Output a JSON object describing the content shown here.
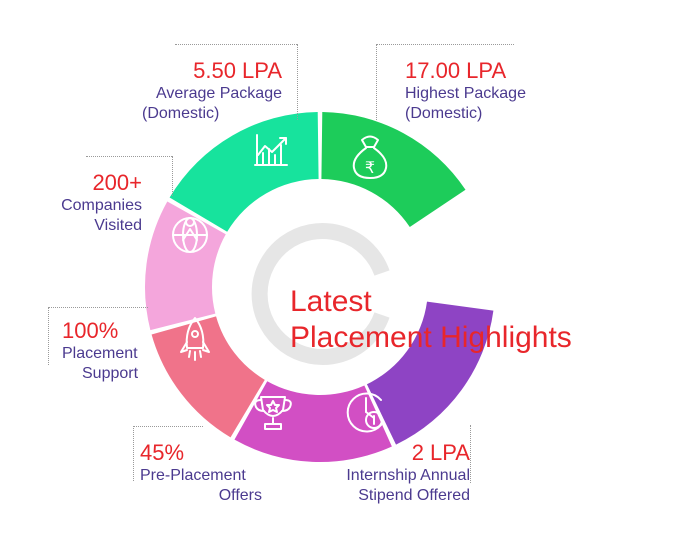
{
  "title": {
    "line1": "Latest",
    "line2": "Placement Highlights"
  },
  "segments": [
    {
      "value": "17.00 LPA",
      "label1": "Highest Package",
      "label2": "(Domestic)",
      "icon": "money-bag-rupee-icon",
      "color": "#1dcc5a"
    },
    {
      "value": "2 LPA",
      "label1": "Internship Annual",
      "label2": "Stipend Offered",
      "icon": "clock-coin-icon",
      "color": "#8e44c4"
    },
    {
      "value": "45%",
      "label1": "Pre-Placement",
      "label2": "Offers",
      "icon": "trophy-icon",
      "color": "#d24fc4"
    },
    {
      "value": "100%",
      "label1": "Placement",
      "label2": "Support",
      "icon": "rocket-icon",
      "color": "#f0738a"
    },
    {
      "value": "200+",
      "label1": "Companies",
      "label2": "Visited",
      "icon": "globe-person-icon",
      "color": "#f4a6dc"
    },
    {
      "value": "5.50 LPA",
      "label1": "Average Package",
      "label2": "(Domestic)",
      "icon": "chart-growth-icon",
      "color": "#17e39d"
    }
  ],
  "inner_ring_color": "#e6e6e6"
}
